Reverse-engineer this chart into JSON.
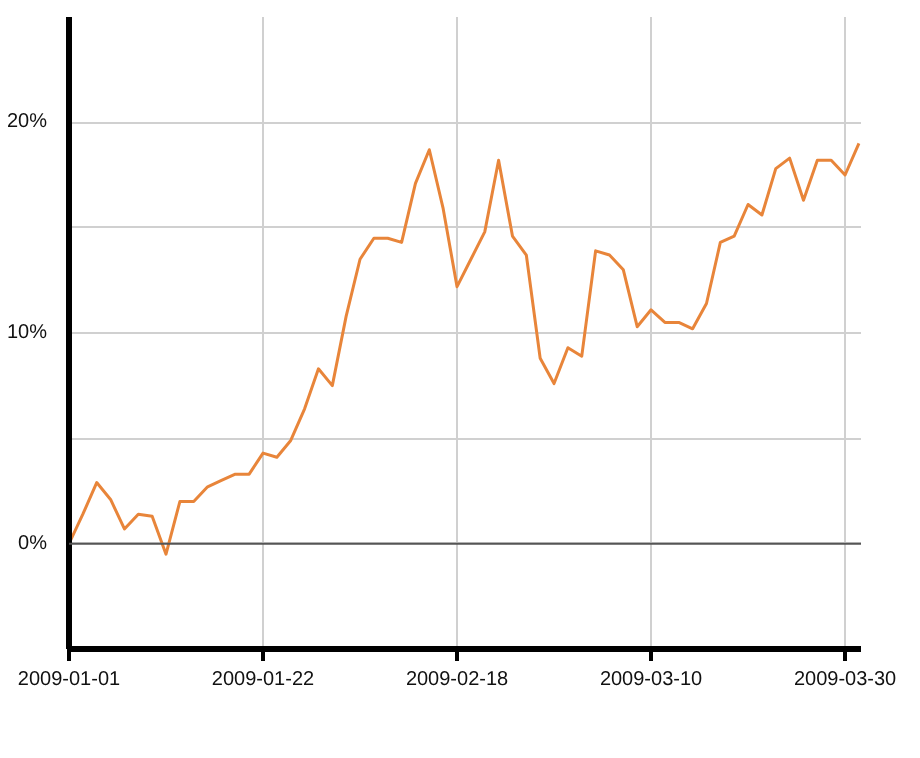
{
  "chart_data": {
    "type": "line",
    "categories": [
      "2009-01-01",
      null,
      null,
      null,
      null,
      null,
      null,
      null,
      null,
      null,
      null,
      null,
      null,
      null,
      "2009-01-22",
      null,
      null,
      null,
      null,
      null,
      null,
      null,
      null,
      null,
      null,
      null,
      null,
      null,
      "2009-02-18",
      null,
      null,
      null,
      null,
      null,
      null,
      null,
      null,
      null,
      null,
      null,
      null,
      null,
      "2009-03-10",
      null,
      null,
      null,
      null,
      null,
      null,
      null,
      null,
      null,
      null,
      null,
      null,
      null,
      "2009-03-30",
      null
    ],
    "series": [
      {
        "color": "#e8853a",
        "values": [
          0,
          1.4,
          2.9,
          2.1,
          0.7,
          1.4,
          1.3,
          -0.5,
          2.0,
          2.0,
          2.7,
          3.0,
          3.3,
          3.3,
          4.3,
          4.1,
          4.9,
          6.4,
          8.3,
          7.5,
          10.8,
          13.5,
          14.5,
          14.5,
          14.3,
          17.1,
          18.7,
          15.9,
          12.2,
          13.5,
          14.8,
          18.2,
          14.6,
          13.7,
          8.8,
          7.6,
          9.3,
          8.9,
          13.9,
          13.7,
          13.0,
          10.3,
          11.1,
          10.5,
          10.5,
          10.2,
          11.4,
          14.3,
          14.6,
          16.1,
          15.6,
          17.8,
          18.3,
          16.3,
          18.2,
          18.2,
          17.5,
          19.0
        ]
      }
    ],
    "ylim": [
      -5,
      25
    ],
    "yticks": [
      {
        "value": 0,
        "label": "0%"
      },
      {
        "value": 5,
        "label": null
      },
      {
        "value": 10,
        "label": "10%"
      },
      {
        "value": 15,
        "label": null
      },
      {
        "value": 20,
        "label": "20%"
      }
    ],
    "ref_lines": [
      {
        "axis": "y",
        "value": 0,
        "color": "#555555"
      }
    ],
    "grid": true,
    "marker": "none",
    "line_style": "solid"
  }
}
